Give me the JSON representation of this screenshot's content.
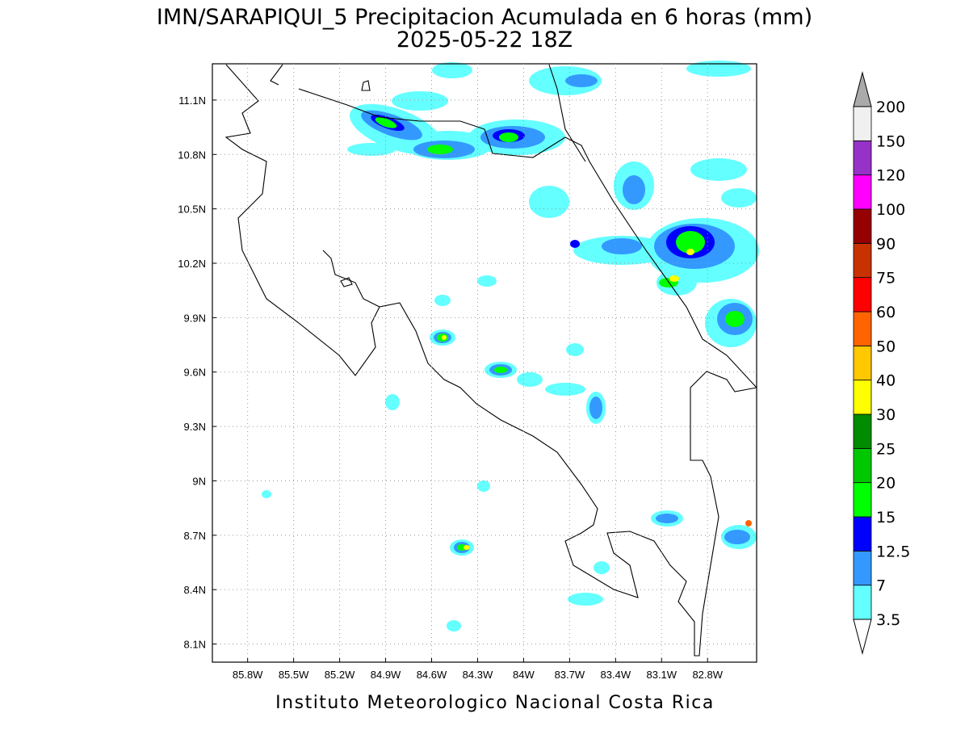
{
  "title": "IMN/SARAPIQUI_5 Precipitacion Acumulada en 6 horas (mm)",
  "subtitle": "2025-05-22 18Z",
  "footer": "Instituto Meteorologico Nacional Costa Rica",
  "map": {
    "lonlim": [
      -86.03,
      -82.48
    ],
    "latlim": [
      8.0,
      11.3
    ],
    "lon_ticks": [
      {
        "value": -85.8,
        "label": "85.8W"
      },
      {
        "value": -85.5,
        "label": "85.5W"
      },
      {
        "value": -85.2,
        "label": "85.2W"
      },
      {
        "value": -84.9,
        "label": "84.9W"
      },
      {
        "value": -84.6,
        "label": "84.6W"
      },
      {
        "value": -84.3,
        "label": "84.3W"
      },
      {
        "value": -84.0,
        "label": "84W"
      },
      {
        "value": -83.7,
        "label": "83.7W"
      },
      {
        "value": -83.4,
        "label": "83.4W"
      },
      {
        "value": -83.1,
        "label": "83.1W"
      },
      {
        "value": -82.8,
        "label": "82.8W"
      }
    ],
    "lat_ticks": [
      {
        "value": 8.1,
        "label": "8.1N"
      },
      {
        "value": 8.4,
        "label": "8.4N"
      },
      {
        "value": 8.7,
        "label": "8.7N"
      },
      {
        "value": 9.0,
        "label": "9N"
      },
      {
        "value": 9.3,
        "label": "9.3N"
      },
      {
        "value": 9.6,
        "label": "9.6N"
      },
      {
        "value": 9.9,
        "label": "9.9N"
      },
      {
        "value": 10.2,
        "label": "10.2N"
      },
      {
        "value": 10.5,
        "label": "10.5N"
      },
      {
        "value": 10.8,
        "label": "10.8N"
      },
      {
        "value": 11.1,
        "label": "11.1N"
      }
    ]
  },
  "colorbar": {
    "levels": [
      3.5,
      7,
      12.5,
      15,
      20,
      25,
      30,
      40,
      50,
      60,
      75,
      90,
      100,
      120,
      150,
      200
    ],
    "colors": [
      "#64ffff",
      "#3399ff",
      "#0000ff",
      "#00ff00",
      "#00c800",
      "#008c00",
      "#ffff00",
      "#ffc800",
      "#ff6400",
      "#ff0000",
      "#c83200",
      "#960000",
      "#ff00ff",
      "#9632c8",
      "#f0f0f0"
    ],
    "under_color": "#ffffff",
    "over_color": "#aaaaaa"
  }
}
